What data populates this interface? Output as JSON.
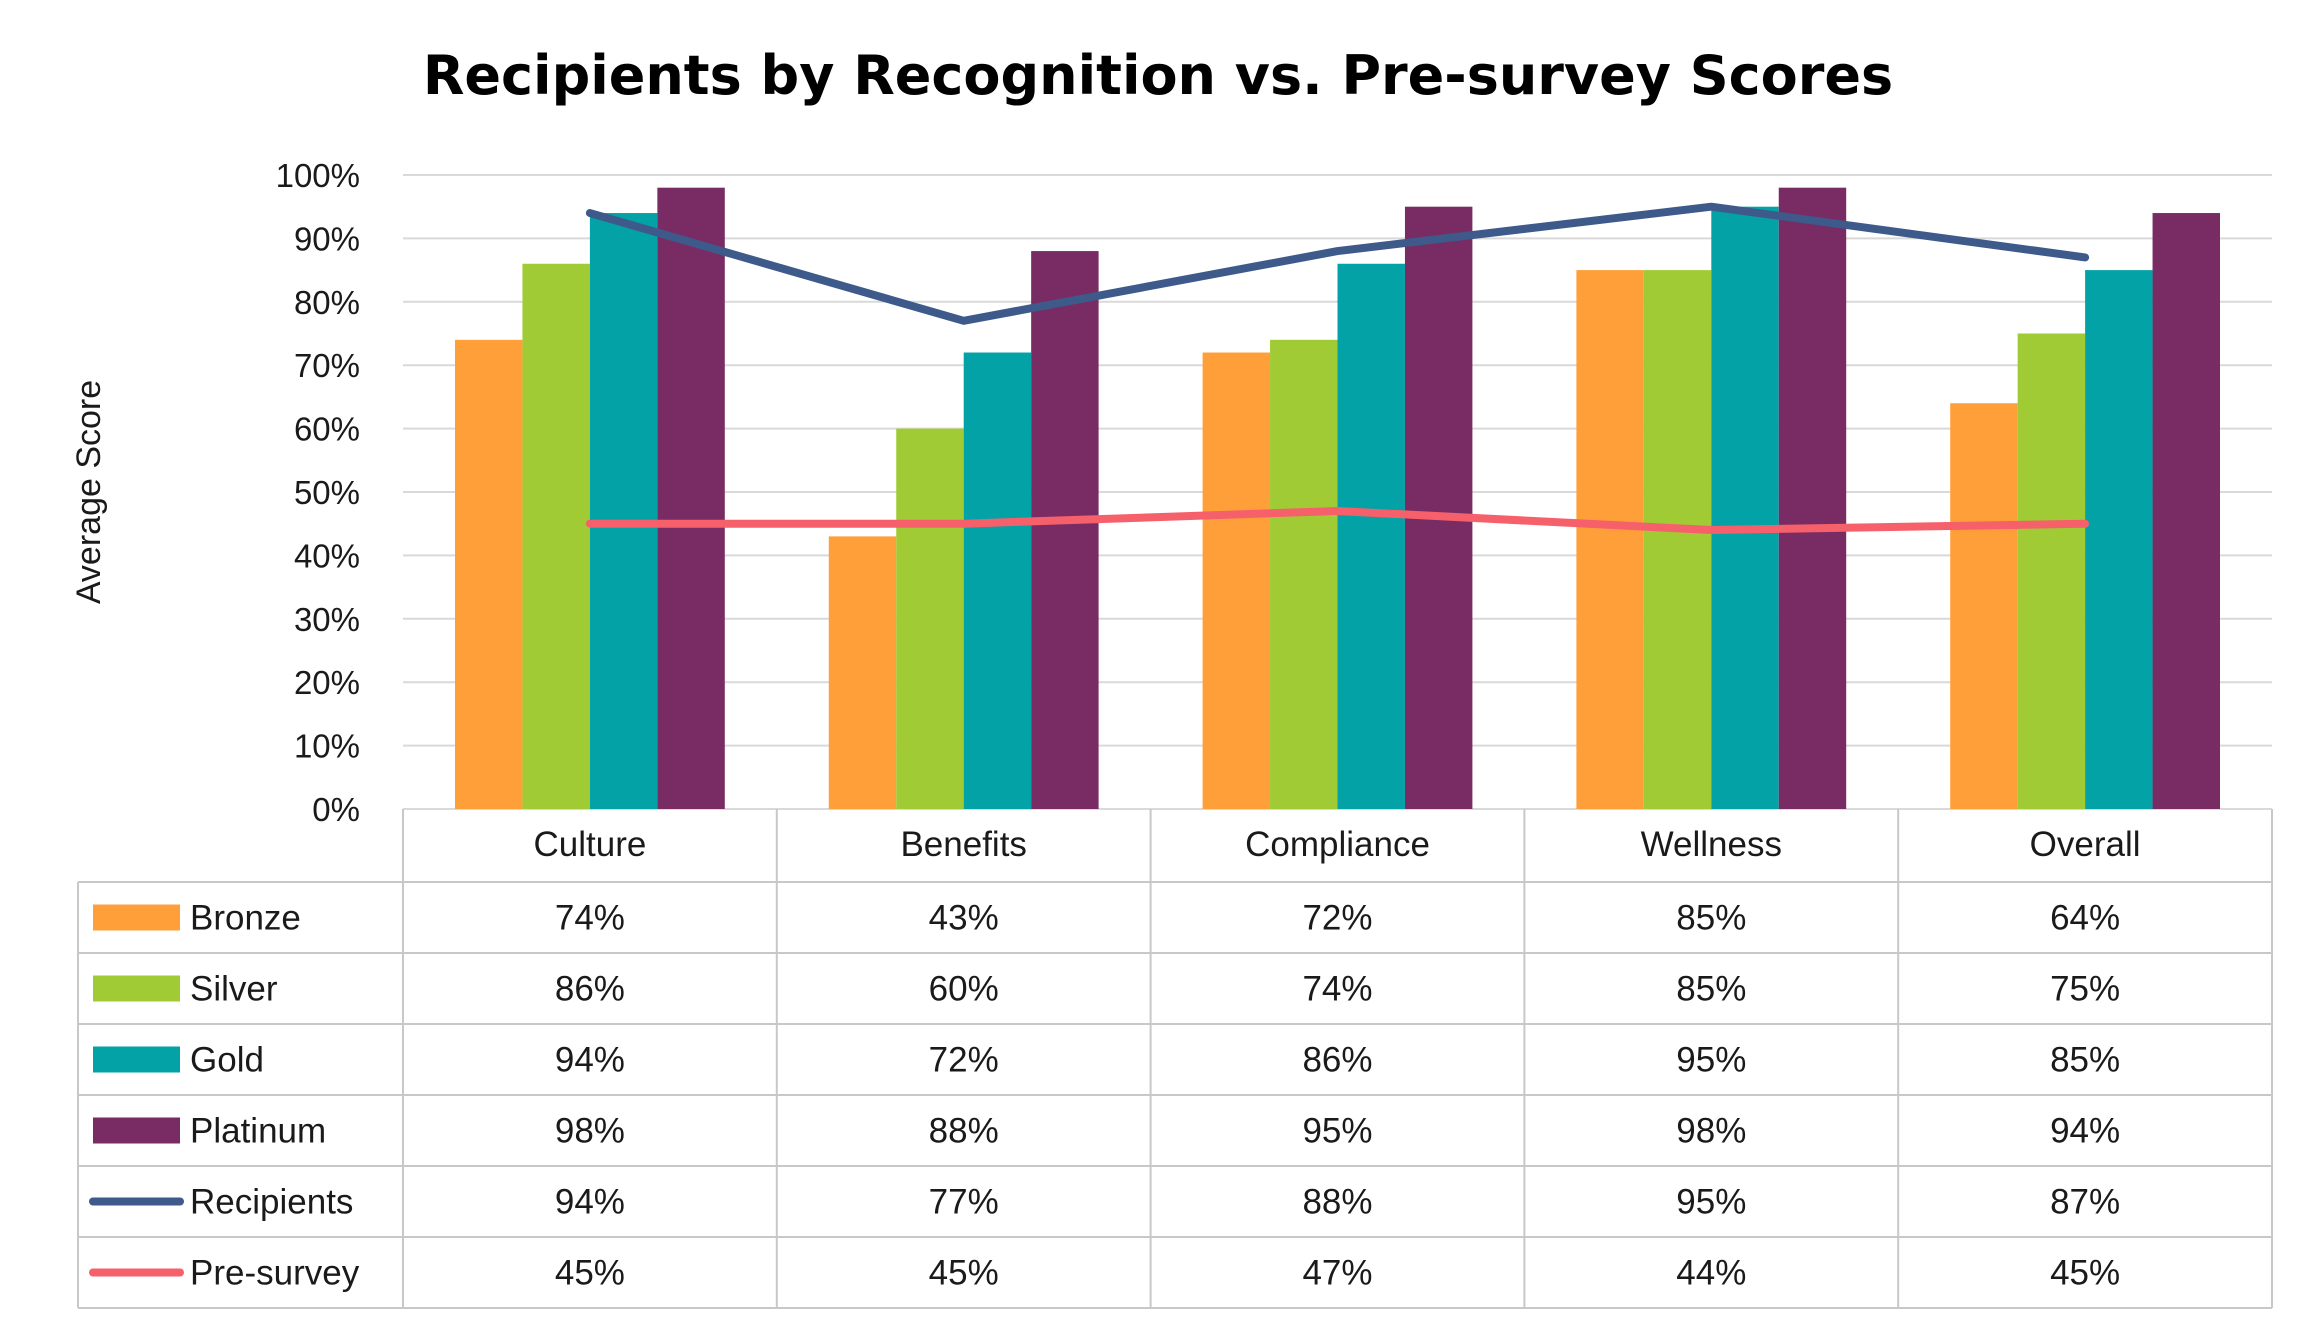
{
  "chart_data": {
    "type": "bar",
    "title": "Recipients by Recognition vs. Pre-survey Scores",
    "xlabel": "",
    "ylabel": "Average Score",
    "ylim": [
      0,
      100
    ],
    "y_ticks": [
      "0%",
      "10%",
      "20%",
      "30%",
      "40%",
      "50%",
      "60%",
      "70%",
      "80%",
      "90%",
      "100%"
    ],
    "grid": true,
    "legend": "data table",
    "categories": [
      "Culture",
      "Benefits",
      "Compliance",
      "Wellness",
      "Overall"
    ],
    "series": [
      {
        "name": "Bronze",
        "kind": "bar",
        "color": "#FF9F3A",
        "values": [
          74,
          43,
          72,
          85,
          64
        ],
        "labels": [
          "74%",
          "43%",
          "72%",
          "85%",
          "64%"
        ]
      },
      {
        "name": "Silver",
        "kind": "bar",
        "color": "#A1CB34",
        "values": [
          86,
          60,
          74,
          85,
          75
        ],
        "labels": [
          "86%",
          "60%",
          "74%",
          "85%",
          "75%"
        ]
      },
      {
        "name": "Gold",
        "kind": "bar",
        "color": "#03A2A6",
        "values": [
          94,
          72,
          86,
          95,
          85
        ],
        "labels": [
          "94%",
          "72%",
          "86%",
          "95%",
          "85%"
        ]
      },
      {
        "name": "Platinum",
        "kind": "bar",
        "color": "#782C63",
        "values": [
          98,
          88,
          95,
          98,
          94
        ],
        "labels": [
          "98%",
          "88%",
          "95%",
          "98%",
          "94%"
        ]
      },
      {
        "name": "Recipients",
        "kind": "line",
        "color": "#3D5A8A",
        "values": [
          94,
          77,
          88,
          95,
          87
        ],
        "labels": [
          "94%",
          "77%",
          "88%",
          "95%",
          "87%"
        ]
      },
      {
        "name": "Pre-survey",
        "kind": "line",
        "color": "#F6606A",
        "values": [
          45,
          45,
          47,
          44,
          45
        ],
        "labels": [
          "45%",
          "45%",
          "47%",
          "44%",
          "45%"
        ]
      }
    ]
  }
}
